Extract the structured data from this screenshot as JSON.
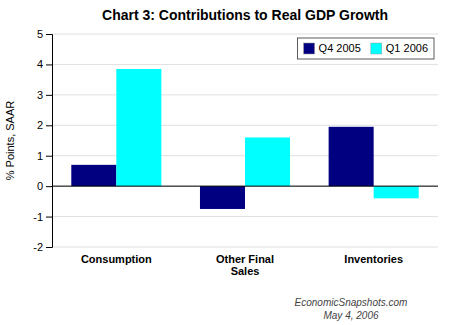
{
  "chart_data": {
    "type": "bar",
    "title": "Chart 3: Contributions to Real GDP Growth",
    "ylabel": "% Points, SAAR",
    "categories": [
      "Consumption",
      "Other Final\nSales",
      "Inventories"
    ],
    "series": [
      {
        "name": "Q4 2005",
        "color": "#000080",
        "values": [
          0.7,
          -0.75,
          1.95
        ]
      },
      {
        "name": "Q1 2006",
        "color": "#00FFFF",
        "values": [
          3.85,
          1.6,
          -0.4
        ]
      }
    ],
    "ylim": [
      -2,
      5
    ],
    "yticks": [
      -2,
      -1,
      0,
      1,
      2,
      3,
      4,
      5
    ],
    "grid": true,
    "legend": "upper right",
    "annotations": [
      "EconomicSnapshots.com",
      "May 4, 2006"
    ]
  }
}
